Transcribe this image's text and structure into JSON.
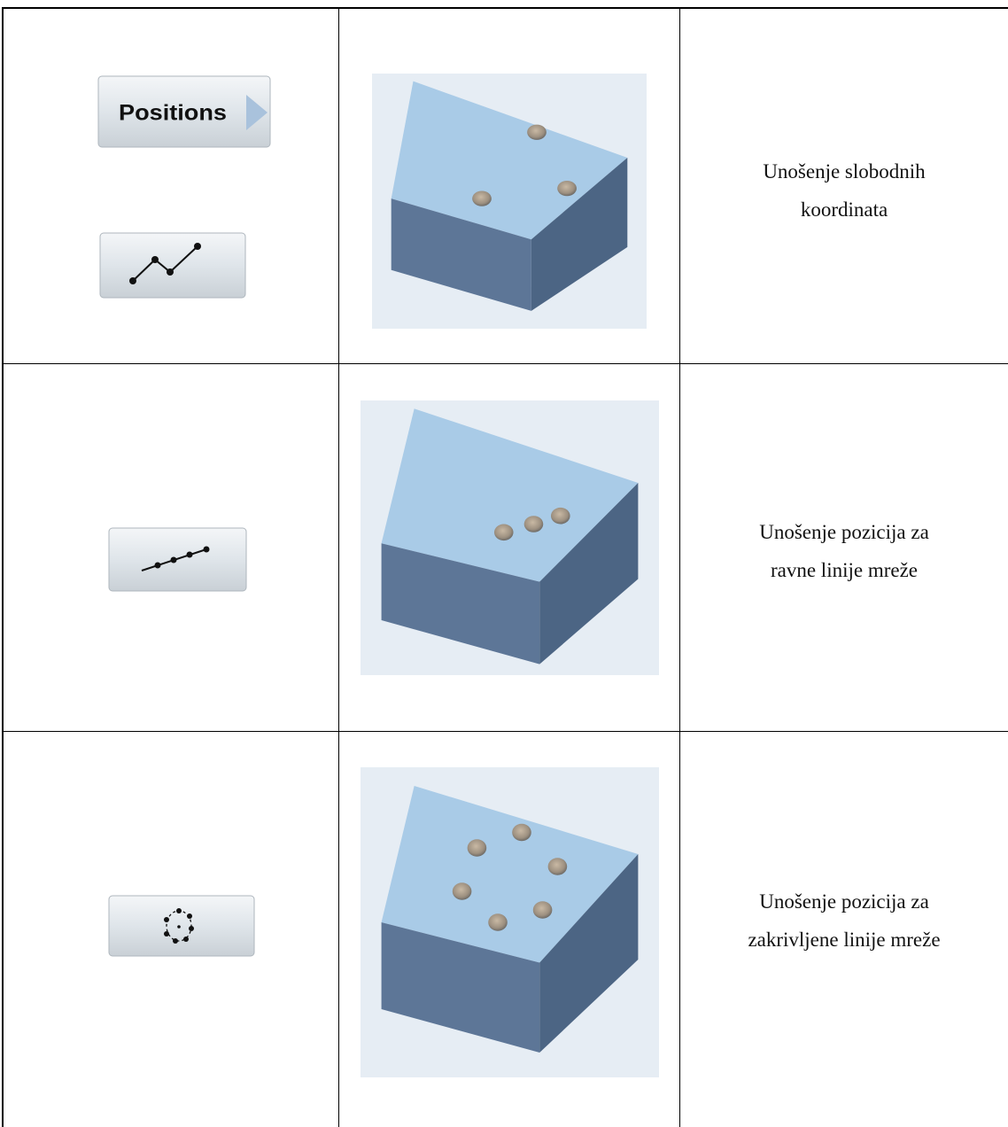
{
  "table": {
    "rows": [
      {
        "button_label": "Positions",
        "description": [
          "Unošenje slobodnih",
          "koordinata"
        ]
      },
      {
        "description": [
          "Unošenje pozicija za",
          "ravne linije mreže"
        ]
      },
      {
        "description": [
          "Unošenje pozicija za",
          "zakrivljene linije mreže"
        ]
      }
    ]
  }
}
